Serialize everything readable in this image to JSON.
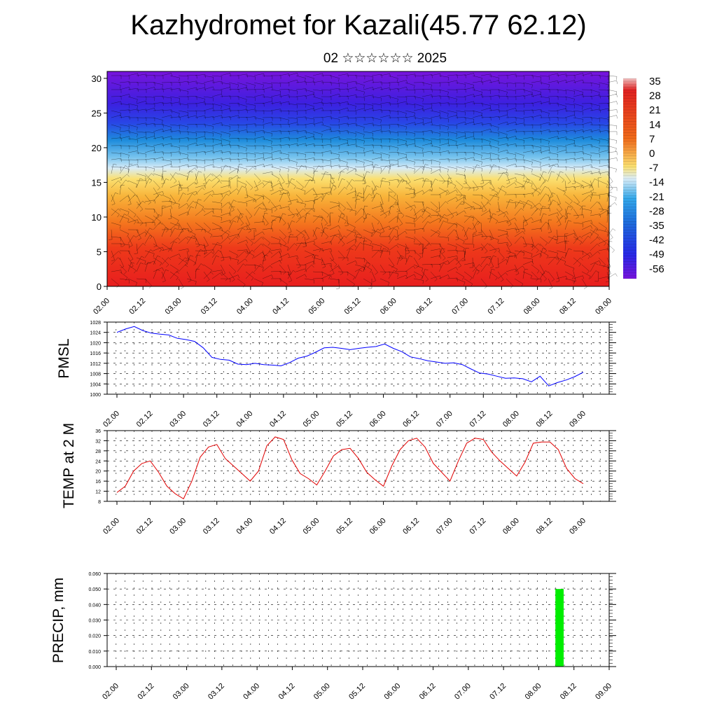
{
  "header": {
    "title": "Kazhydromet for Kazali(45.77 62.12)",
    "subtitle": "02 ☆☆☆☆☆☆ 2025"
  },
  "chart_data": [
    {
      "type": "heatmap",
      "title": "",
      "y_ticks": [
        "0",
        "5",
        "10",
        "15",
        "20",
        "25",
        "30"
      ],
      "ylim": [
        0,
        31
      ],
      "x_tick_labels": [
        "02.00",
        "02.12",
        "03.00",
        "03.12",
        "04.00",
        "04.12",
        "05.00",
        "05.12",
        "06.00",
        "06.12",
        "07.00",
        "07.12",
        "08.00",
        "08.12",
        "09.00"
      ],
      "colorbar": {
        "labels": [
          "35",
          "28",
          "21",
          "14",
          "7",
          "0",
          "-7",
          "-14",
          "-21",
          "-28",
          "-35",
          "-42",
          "-49",
          "-56"
        ],
        "colors": [
          "#f0b4b4",
          "#e81e1e",
          "#f4781e",
          "#fadc5a",
          "#aad2f0",
          "#1e8cdc",
          "#2828e6",
          "#7814dc"
        ]
      },
      "wind_barbs": true
    },
    {
      "type": "line",
      "ylabel": "PMSL",
      "ylim": [
        1000,
        1028
      ],
      "y_ticks": [
        "1000",
        "1004",
        "1008",
        "1012",
        "1016",
        "1020",
        "1024",
        "1028"
      ],
      "x_tick_labels": [
        "02.00",
        "02.12",
        "03.00",
        "03.12",
        "04.00",
        "04.12",
        "05.00",
        "05.12",
        "06.00",
        "06.12",
        "07.00",
        "07.12",
        "08.00",
        "08.12",
        "09.00"
      ],
      "color": "#0000ff",
      "grid": true,
      "series": [
        {
          "values": [
            1024.0,
            1025.3,
            1026.3,
            1024.7,
            1023.7,
            1023.3,
            1023.0,
            1021.7,
            1021.2,
            1020.5,
            1018.0,
            1014.3,
            1013.5,
            1013.2,
            1011.7,
            1011.5,
            1012.0,
            1011.5,
            1011.3,
            1011.0,
            1012.3,
            1014.0,
            1014.8,
            1016.3,
            1018.0,
            1018.2,
            1017.8,
            1017.3,
            1017.8,
            1018.2,
            1018.5,
            1019.5,
            1017.8,
            1016.5,
            1014.5,
            1013.8,
            1013.0,
            1012.5,
            1012.0,
            1012.2,
            1011.5,
            1009.8,
            1008.2,
            1007.8,
            1007.0,
            1006.2,
            1006.3,
            1006.0,
            1004.8,
            1007.0,
            1003.2,
            1004.5,
            1005.5,
            1006.8,
            1008.5
          ]
        }
      ]
    },
    {
      "type": "line",
      "ylabel": "TEMP at 2 M",
      "ylim": [
        8,
        36
      ],
      "y_ticks": [
        "8",
        "12",
        "16",
        "20",
        "24",
        "28",
        "32",
        "36"
      ],
      "x_tick_labels": [
        "02.00",
        "02.12",
        "03.00",
        "03.12",
        "04.00",
        "04.12",
        "05.00",
        "05.12",
        "06.00",
        "06.12",
        "07.00",
        "07.12",
        "08.00",
        "08.12",
        "09.00"
      ],
      "color": "#e00000",
      "grid": true,
      "series": [
        {
          "values": [
            11.5,
            14.0,
            20.0,
            23.0,
            24.0,
            19.5,
            14.0,
            11.0,
            9.0,
            16.0,
            25.5,
            29.5,
            30.5,
            25.0,
            22.0,
            19.0,
            16.0,
            20.0,
            30.0,
            33.5,
            32.5,
            24.5,
            19.0,
            17.0,
            14.5,
            20.0,
            26.0,
            28.5,
            29.0,
            25.0,
            19.5,
            16.5,
            14.0,
            22.0,
            28.5,
            32.0,
            33.0,
            29.5,
            23.0,
            19.5,
            16.0,
            24.0,
            31.0,
            33.0,
            32.5,
            27.5,
            24.0,
            21.0,
            18.0,
            23.5,
            31.0,
            31.5,
            31.5,
            28.5,
            21.0,
            17.0,
            15.0
          ]
        }
      ]
    },
    {
      "type": "bar",
      "ylabel": "PRECIP, mm",
      "ylim": [
        0,
        0.06
      ],
      "y_ticks": [
        "0.000",
        "0.010",
        "0.020",
        "0.030",
        "0.040",
        "0.050",
        "0.060"
      ],
      "x_tick_labels": [
        "02.00",
        "02.12",
        "03.00",
        "03.12",
        "04.00",
        "04.12",
        "05.00",
        "05.12",
        "06.00",
        "06.12",
        "07.00",
        "07.12",
        "08.00",
        "08.12",
        "09.00"
      ],
      "color": "#00ee00",
      "grid": true,
      "series": [
        {
          "values": [
            0,
            0,
            0,
            0,
            0,
            0,
            0,
            0,
            0,
            0,
            0,
            0,
            0,
            0,
            0,
            0,
            0,
            0,
            0,
            0,
            0,
            0,
            0,
            0,
            0,
            0,
            0,
            0,
            0,
            0,
            0,
            0,
            0,
            0,
            0,
            0,
            0,
            0,
            0,
            0,
            0,
            0,
            0,
            0,
            0,
            0,
            0,
            0,
            0,
            0,
            0.05,
            0,
            0,
            0,
            0,
            0
          ]
        }
      ]
    }
  ]
}
